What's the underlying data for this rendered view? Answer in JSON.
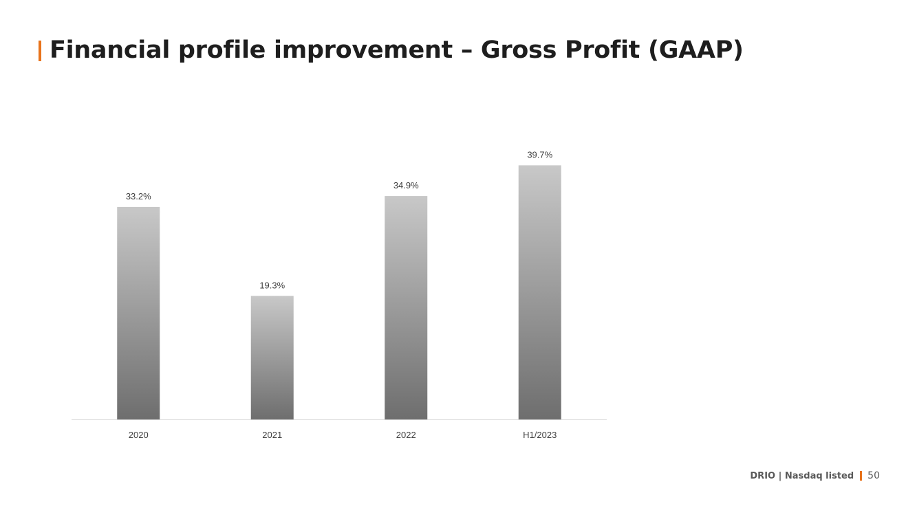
{
  "title": "Financial profile improvement – Gross Profit (GAAP)",
  "footer": {
    "brand": "DRIO | Nasdaq listed",
    "page_number": "50"
  },
  "colors": {
    "accent": "#e8731c",
    "bar_top": "#c8c8c8",
    "bar_bottom": "#6e6e6e",
    "axis": "#d9d9d9"
  },
  "chart_data": {
    "type": "bar",
    "categories": [
      "2020",
      "2021",
      "2022",
      "H1/2023"
    ],
    "values": [
      33.2,
      19.3,
      34.9,
      39.7
    ],
    "data_labels": [
      "33.2%",
      "19.3%",
      "34.9%",
      "39.7%"
    ],
    "title": "",
    "xlabel": "",
    "ylabel": "",
    "ylim": [
      0,
      40
    ],
    "grid": false,
    "legend": "none"
  }
}
